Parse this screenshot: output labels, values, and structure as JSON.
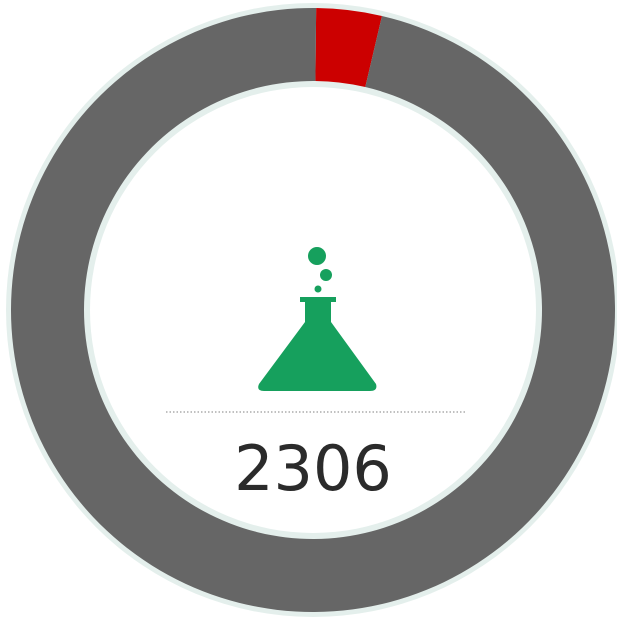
{
  "chart_data": {
    "type": "donut",
    "categories": [
      null,
      null
    ],
    "values": [
      3.5,
      96.5
    ],
    "colors": [
      "#cc0000",
      "#666666"
    ],
    "center_label": "2306"
  }
}
